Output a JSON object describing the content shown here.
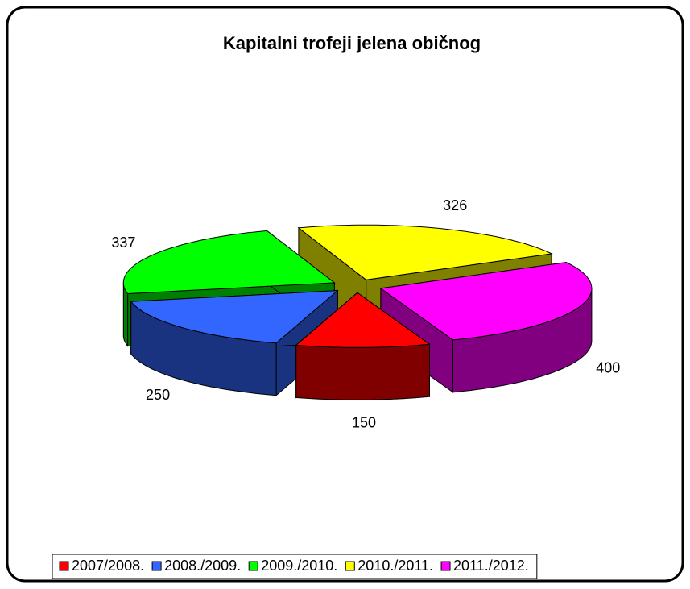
{
  "chart_data": {
    "type": "pie3d",
    "title": "Kapitalni trofeji jelena običnog",
    "categories": [
      "2007/2008.",
      "2008./2009.",
      "2009./2010.",
      "2010./2011.",
      "2011./2012."
    ],
    "values": [
      150,
      250,
      337,
      326,
      400
    ],
    "colors": [
      "#ff0000",
      "#3366ff",
      "#00ff00",
      "#ffff00",
      "#ff00ff"
    ],
    "legend": "bottom"
  }
}
